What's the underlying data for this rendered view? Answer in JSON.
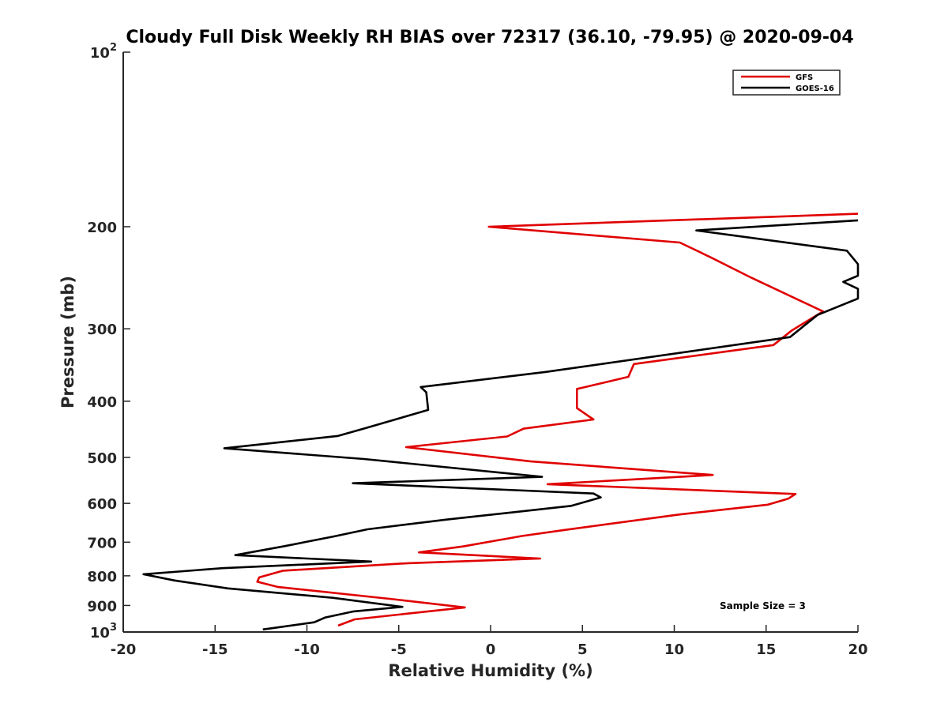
{
  "chart_data": {
    "type": "line",
    "title": "Cloudy Full Disk Weekly RH BIAS over 72317 (36.10, -79.95) @ 2020-09-04",
    "xlabel": "Relative Humidity (%)",
    "ylabel": "Pressure (mb)",
    "xlim": [
      -20,
      20
    ],
    "ylim": [
      100,
      1000
    ],
    "y_scale": "log",
    "y_reversed": true,
    "x_ticks": [
      "-20",
      "-15",
      "-10",
      "-5",
      "0",
      "5",
      "10",
      "15",
      "20"
    ],
    "y_ticks": [
      {
        "value": 100,
        "label": "10",
        "sup": "2"
      },
      {
        "value": 200,
        "label": "200",
        "sup": ""
      },
      {
        "value": 300,
        "label": "300",
        "sup": ""
      },
      {
        "value": 400,
        "label": "400",
        "sup": ""
      },
      {
        "value": 500,
        "label": "500",
        "sup": ""
      },
      {
        "value": 600,
        "label": "600",
        "sup": ""
      },
      {
        "value": 700,
        "label": "700",
        "sup": ""
      },
      {
        "value": 800,
        "label": "800",
        "sup": ""
      },
      {
        "value": 900,
        "label": "900",
        "sup": ""
      },
      {
        "value": 1000,
        "label": "10",
        "sup": "3"
      }
    ],
    "grid": false,
    "legend_position": "top-right",
    "annotation": "Sample Size = 3",
    "series": [
      {
        "name": "GFS",
        "color": "#e00000",
        "points": [
          [
            20,
            190
          ],
          [
            -0.1,
            200
          ],
          [
            10.3,
            213
          ],
          [
            12,
            226
          ],
          [
            14.2,
            245
          ],
          [
            18.1,
            280
          ],
          [
            16.4,
            302
          ],
          [
            15.4,
            320
          ],
          [
            7.8,
            345
          ],
          [
            7.5,
            363
          ],
          [
            4.7,
            381
          ],
          [
            4.7,
            411
          ],
          [
            5.6,
            430
          ],
          [
            1.8,
            446
          ],
          [
            0.9,
            460
          ],
          [
            -4.6,
            480
          ],
          [
            2.2,
            508
          ],
          [
            12.1,
            536
          ],
          [
            3.1,
            556
          ],
          [
            16.6,
            578
          ],
          [
            16.2,
            589
          ],
          [
            15.1,
            603
          ],
          [
            10.3,
            627
          ],
          [
            4,
            667
          ],
          [
            1.7,
            683
          ],
          [
            -1.5,
            712
          ],
          [
            -3.9,
            729
          ],
          [
            2.7,
            747
          ],
          [
            -4.5,
            761
          ],
          [
            -11.3,
            784
          ],
          [
            -12.6,
            805
          ],
          [
            -12.7,
            819
          ],
          [
            -11.6,
            836
          ],
          [
            -5.3,
            878
          ],
          [
            -1.4,
            907
          ],
          [
            -7.4,
            951
          ],
          [
            -8.3,
            975
          ]
        ]
      },
      {
        "name": "GOES-16",
        "color": "#000000",
        "points": [
          [
            20,
            195
          ],
          [
            11.2,
            203
          ],
          [
            19.4,
            220
          ],
          [
            20,
            232
          ],
          [
            20,
            243
          ],
          [
            19.2,
            249
          ],
          [
            20,
            256
          ],
          [
            20,
            266
          ],
          [
            17.8,
            284
          ],
          [
            16.3,
            310
          ],
          [
            3,
            356
          ],
          [
            -3.8,
            378
          ],
          [
            -3.5,
            386
          ],
          [
            -3.4,
            414
          ],
          [
            -6.8,
            445
          ],
          [
            -8.3,
            459
          ],
          [
            -14.5,
            482
          ],
          [
            -6.9,
            503
          ],
          [
            2.8,
            540
          ],
          [
            -7.5,
            554
          ],
          [
            5.6,
            577
          ],
          [
            6,
            586
          ],
          [
            4.4,
            606
          ],
          [
            -2.4,
            640
          ],
          [
            -6.7,
            665
          ],
          [
            -8.5,
            684
          ],
          [
            -11.3,
            712
          ],
          [
            -13.9,
            737
          ],
          [
            -6.5,
            756
          ],
          [
            -14.6,
            776
          ],
          [
            -18.9,
            795
          ],
          [
            -17.2,
            815
          ],
          [
            -14.3,
            841
          ],
          [
            -8.6,
            873
          ],
          [
            -5.5,
            899
          ],
          [
            -4.8,
            905
          ],
          [
            -7.5,
            922
          ],
          [
            -9,
            944
          ],
          [
            -9.6,
            962
          ],
          [
            -12.4,
            990
          ]
        ]
      }
    ]
  }
}
